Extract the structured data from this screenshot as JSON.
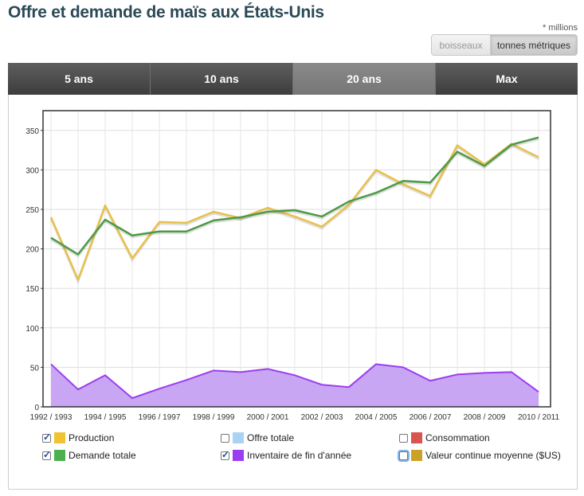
{
  "page": {
    "title": "Offre et demande de maïs aux États-Unis",
    "units_note": "* millions"
  },
  "unit_toggle": {
    "options": [
      "boisseaux",
      "tonnes métriques"
    ],
    "selected": "tonnes métriques"
  },
  "tabs": [
    {
      "label": "5 ans",
      "active": false
    },
    {
      "label": "10 ans",
      "active": false
    },
    {
      "label": "20 ans",
      "active": true
    },
    {
      "label": "Max",
      "active": false
    }
  ],
  "legend": [
    {
      "label": "Production",
      "color": "#f0c330",
      "checked": true,
      "focused": false
    },
    {
      "label": "Offre totale",
      "color": "#a9d3f5",
      "checked": false,
      "focused": false
    },
    {
      "label": "Consommation",
      "color": "#d9534f",
      "checked": false,
      "focused": false
    },
    {
      "label": "Demande totale",
      "color": "#4caf50",
      "checked": true,
      "focused": false
    },
    {
      "label": "Inventaire de fin d'année",
      "color": "#9b3df0",
      "checked": true,
      "focused": false
    },
    {
      "label": "Valeur continue moyenne ($US)",
      "color": "#c9a227",
      "checked": false,
      "focused": true
    }
  ],
  "chart_data": {
    "type": "line",
    "title": "",
    "xlabel": "",
    "ylabel": "",
    "ylim": [
      0,
      375
    ],
    "yticks": [
      0,
      50,
      100,
      150,
      200,
      250,
      300,
      350
    ],
    "grid": true,
    "categories": [
      "1992 / 1993",
      "1993 / 1994",
      "1994 / 1995",
      "1995 / 1996",
      "1996 / 1997",
      "1997 / 1998",
      "1998 / 1999",
      "1999 / 2000",
      "2000 / 2001",
      "2001 / 2002",
      "2002 / 2003",
      "2003 / 2004",
      "2004 / 2005",
      "2005 / 2006",
      "2006 / 2007",
      "2007 / 2008",
      "2008 / 2009",
      "2009 / 2010",
      "2010 / 2011"
    ],
    "xtick_labels": [
      "1992 / 1993",
      "1994 / 1995",
      "1996 / 1997",
      "1998 / 1999",
      "2000 / 2001",
      "2002 / 2003",
      "2004 / 2005",
      "2006 / 2007",
      "2008 / 2009",
      "2010 / 2011"
    ],
    "series": [
      {
        "name": "Production",
        "type": "line",
        "color": "#e8c04a",
        "values": [
          240,
          161,
          255,
          188,
          234,
          233,
          247,
          239,
          252,
          241,
          228,
          256,
          300,
          282,
          267,
          331,
          307,
          333,
          316
        ]
      },
      {
        "name": "Demande totale",
        "type": "line",
        "color": "#4c9a45",
        "values": [
          214,
          193,
          237,
          217,
          222,
          222,
          236,
          240,
          247,
          249,
          241,
          260,
          271,
          286,
          284,
          323,
          305,
          332,
          341
        ]
      },
      {
        "name": "Inventaire de fin d'année",
        "type": "area",
        "color": "#9b3df0",
        "values": [
          54,
          22,
          40,
          11,
          23,
          34,
          46,
          44,
          48,
          40,
          28,
          25,
          54,
          50,
          33,
          41,
          43,
          44,
          19
        ]
      }
    ]
  }
}
